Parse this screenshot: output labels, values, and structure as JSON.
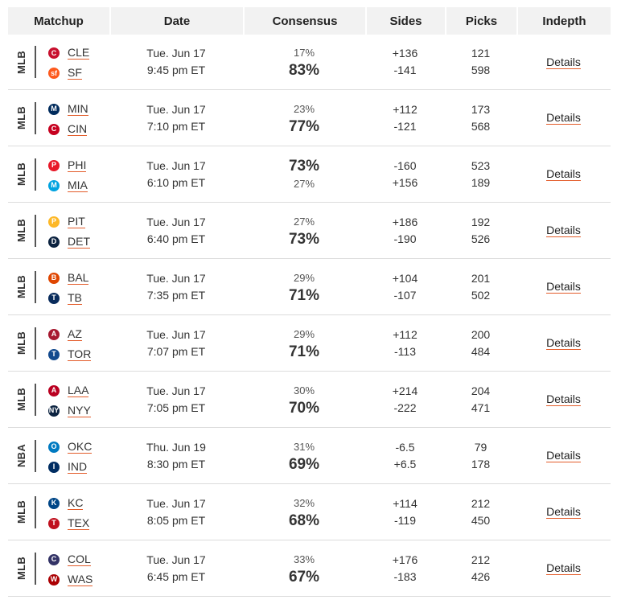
{
  "headers": {
    "matchup": "Matchup",
    "date": "Date",
    "consensus": "Consensus",
    "sides": "Sides",
    "picks": "Picks",
    "indepth": "Indepth"
  },
  "rows": [
    {
      "league": "MLB",
      "away": {
        "abbr": "CLE",
        "logo": "C",
        "color": "#c8102e"
      },
      "home": {
        "abbr": "SF",
        "logo": "sf",
        "color": "#fd5a1e"
      },
      "date": "Tue. Jun 17",
      "time": "9:45 pm ET",
      "consensus_top": "17%",
      "consensus_bottom": "83%",
      "top_big": false,
      "sides_top": "+136",
      "sides_bottom": "-141",
      "picks_top": "121",
      "picks_bottom": "598",
      "details": "Details"
    },
    {
      "league": "MLB",
      "away": {
        "abbr": "MIN",
        "logo": "M",
        "color": "#002b5c"
      },
      "home": {
        "abbr": "CIN",
        "logo": "C",
        "color": "#c6011f"
      },
      "date": "Tue. Jun 17",
      "time": "7:10 pm ET",
      "consensus_top": "23%",
      "consensus_bottom": "77%",
      "top_big": false,
      "sides_top": "+112",
      "sides_bottom": "-121",
      "picks_top": "173",
      "picks_bottom": "568",
      "details": "Details"
    },
    {
      "league": "MLB",
      "away": {
        "abbr": "PHI",
        "logo": "P",
        "color": "#e81828"
      },
      "home": {
        "abbr": "MIA",
        "logo": "M",
        "color": "#00a3e0"
      },
      "date": "Tue. Jun 17",
      "time": "6:10 pm ET",
      "consensus_top": "73%",
      "consensus_bottom": "27%",
      "top_big": true,
      "sides_top": "-160",
      "sides_bottom": "+156",
      "picks_top": "523",
      "picks_bottom": "189",
      "details": "Details"
    },
    {
      "league": "MLB",
      "away": {
        "abbr": "PIT",
        "logo": "P",
        "color": "#fdb827"
      },
      "home": {
        "abbr": "DET",
        "logo": "D",
        "color": "#0c2340"
      },
      "date": "Tue. Jun 17",
      "time": "6:40 pm ET",
      "consensus_top": "27%",
      "consensus_bottom": "73%",
      "top_big": false,
      "sides_top": "+186",
      "sides_bottom": "-190",
      "picks_top": "192",
      "picks_bottom": "526",
      "details": "Details"
    },
    {
      "league": "MLB",
      "away": {
        "abbr": "BAL",
        "logo": "B",
        "color": "#df4601"
      },
      "home": {
        "abbr": "TB",
        "logo": "T",
        "color": "#092c5c"
      },
      "date": "Tue. Jun 17",
      "time": "7:35 pm ET",
      "consensus_top": "29%",
      "consensus_bottom": "71%",
      "top_big": false,
      "sides_top": "+104",
      "sides_bottom": "-107",
      "picks_top": "201",
      "picks_bottom": "502",
      "details": "Details"
    },
    {
      "league": "MLB",
      "away": {
        "abbr": "AZ",
        "logo": "A",
        "color": "#a71930"
      },
      "home": {
        "abbr": "TOR",
        "logo": "T",
        "color": "#134a8e"
      },
      "date": "Tue. Jun 17",
      "time": "7:07 pm ET",
      "consensus_top": "29%",
      "consensus_bottom": "71%",
      "top_big": false,
      "sides_top": "+112",
      "sides_bottom": "-113",
      "picks_top": "200",
      "picks_bottom": "484",
      "details": "Details"
    },
    {
      "league": "MLB",
      "away": {
        "abbr": "LAA",
        "logo": "A",
        "color": "#ba0021"
      },
      "home": {
        "abbr": "NYY",
        "logo": "NY",
        "color": "#0c2340"
      },
      "date": "Tue. Jun 17",
      "time": "7:05 pm ET",
      "consensus_top": "30%",
      "consensus_bottom": "70%",
      "top_big": false,
      "sides_top": "+214",
      "sides_bottom": "-222",
      "picks_top": "204",
      "picks_bottom": "471",
      "details": "Details"
    },
    {
      "league": "NBA",
      "away": {
        "abbr": "OKC",
        "logo": "O",
        "color": "#007ac1"
      },
      "home": {
        "abbr": "IND",
        "logo": "I",
        "color": "#002d62"
      },
      "date": "Thu. Jun 19",
      "time": "8:30 pm ET",
      "consensus_top": "31%",
      "consensus_bottom": "69%",
      "top_big": false,
      "sides_top": "-6.5",
      "sides_bottom": "+6.5",
      "picks_top": "79",
      "picks_bottom": "178",
      "details": "Details"
    },
    {
      "league": "MLB",
      "away": {
        "abbr": "KC",
        "logo": "K",
        "color": "#004687"
      },
      "home": {
        "abbr": "TEX",
        "logo": "T",
        "color": "#c0111f"
      },
      "date": "Tue. Jun 17",
      "time": "8:05 pm ET",
      "consensus_top": "32%",
      "consensus_bottom": "68%",
      "top_big": false,
      "sides_top": "+114",
      "sides_bottom": "-119",
      "picks_top": "212",
      "picks_bottom": "450",
      "details": "Details"
    },
    {
      "league": "MLB",
      "away": {
        "abbr": "COL",
        "logo": "C",
        "color": "#333366"
      },
      "home": {
        "abbr": "WAS",
        "logo": "W",
        "color": "#ab0003"
      },
      "date": "Tue. Jun 17",
      "time": "6:45 pm ET",
      "consensus_top": "33%",
      "consensus_bottom": "67%",
      "top_big": false,
      "sides_top": "+176",
      "sides_bottom": "-183",
      "picks_top": "212",
      "picks_bottom": "426",
      "details": "Details"
    }
  ]
}
